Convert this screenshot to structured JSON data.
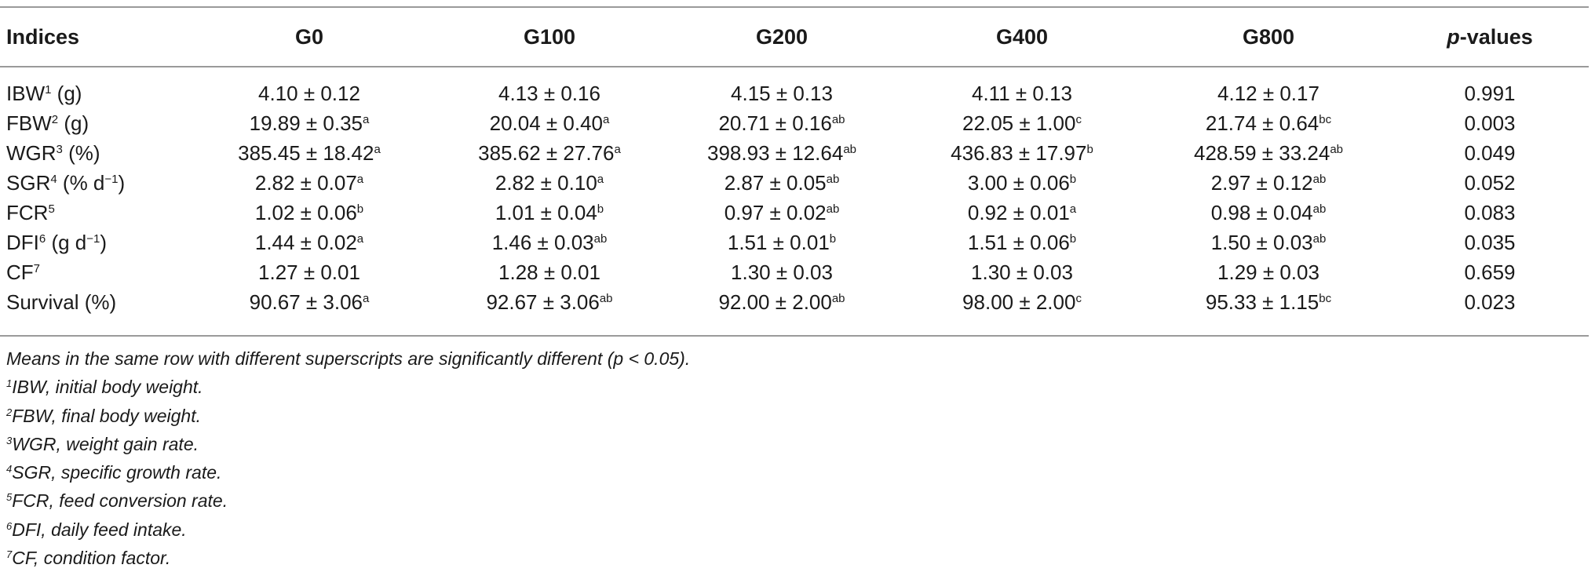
{
  "table": {
    "headers": {
      "indices": "Indices",
      "g0": "G0",
      "g100": "G100",
      "g200": "G200",
      "g400": "G400",
      "g800": "G800",
      "pvalues_p": "p",
      "pvalues_rest": "-values"
    },
    "rows": [
      {
        "label": "IBW",
        "label_sup": "1",
        "unit": " (g)",
        "cells": [
          {
            "v": "4.10 ± 0.12",
            "s": ""
          },
          {
            "v": "4.13 ± 0.16",
            "s": ""
          },
          {
            "v": "4.15 ± 0.13",
            "s": ""
          },
          {
            "v": "4.11 ± 0.13",
            "s": ""
          },
          {
            "v": "4.12 ± 0.17",
            "s": ""
          }
        ],
        "p": "0.991"
      },
      {
        "label": "FBW",
        "label_sup": "2",
        "unit": " (g)",
        "cells": [
          {
            "v": "19.89 ± 0.35",
            "s": "a"
          },
          {
            "v": "20.04 ± 0.40",
            "s": "a"
          },
          {
            "v": "20.71 ± 0.16",
            "s": "ab"
          },
          {
            "v": "22.05 ± 1.00",
            "s": "c"
          },
          {
            "v": "21.74 ± 0.64",
            "s": "bc"
          }
        ],
        "p": "0.003"
      },
      {
        "label": "WGR",
        "label_sup": "3",
        "unit": " (%)",
        "cells": [
          {
            "v": "385.45 ± 18.42",
            "s": "a"
          },
          {
            "v": "385.62 ± 27.76",
            "s": "a"
          },
          {
            "v": "398.93 ± 12.64",
            "s": "ab"
          },
          {
            "v": "436.83 ± 17.97",
            "s": "b"
          },
          {
            "v": "428.59 ± 33.24",
            "s": "ab"
          }
        ],
        "p": "0.049"
      },
      {
        "label": "SGR",
        "label_sup": "4",
        "unit": " (% d",
        "unit_sup": "−1",
        "unit_end": ")",
        "cells": [
          {
            "v": "2.82 ± 0.07",
            "s": "a"
          },
          {
            "v": "2.82 ± 0.10",
            "s": "a"
          },
          {
            "v": "2.87 ± 0.05",
            "s": "ab"
          },
          {
            "v": "3.00 ± 0.06",
            "s": "b"
          },
          {
            "v": "2.97 ± 0.12",
            "s": "ab"
          }
        ],
        "p": "0.052"
      },
      {
        "label": "FCR",
        "label_sup": "5",
        "unit": "",
        "cells": [
          {
            "v": "1.02 ± 0.06",
            "s": "b"
          },
          {
            "v": "1.01 ± 0.04",
            "s": "b"
          },
          {
            "v": "0.97 ± 0.02",
            "s": "ab"
          },
          {
            "v": "0.92 ± 0.01",
            "s": "a"
          },
          {
            "v": "0.98 ± 0.04",
            "s": "ab"
          }
        ],
        "p": "0.083"
      },
      {
        "label": "DFI",
        "label_sup": "6",
        "unit": " (g d",
        "unit_sup": "−1",
        "unit_end": ")",
        "cells": [
          {
            "v": "1.44 ± 0.02",
            "s": "a"
          },
          {
            "v": "1.46 ± 0.03",
            "s": "ab"
          },
          {
            "v": "1.51 ± 0.01",
            "s": "b"
          },
          {
            "v": "1.51 ± 0.06",
            "s": "b"
          },
          {
            "v": "1.50 ± 0.03",
            "s": "ab"
          }
        ],
        "p": "0.035"
      },
      {
        "label": "CF",
        "label_sup": "7",
        "unit": "",
        "cells": [
          {
            "v": "1.27 ± 0.01",
            "s": ""
          },
          {
            "v": "1.28 ± 0.01",
            "s": ""
          },
          {
            "v": "1.30 ± 0.03",
            "s": ""
          },
          {
            "v": "1.30 ± 0.03",
            "s": ""
          },
          {
            "v": "1.29 ± 0.03",
            "s": ""
          }
        ],
        "p": "0.659"
      },
      {
        "label": "Survival",
        "label_sup": "",
        "unit": " (%)",
        "cells": [
          {
            "v": "90.67 ± 3.06",
            "s": "a"
          },
          {
            "v": "92.67 ± 3.06",
            "s": "ab"
          },
          {
            "v": "92.00 ± 2.00",
            "s": "ab"
          },
          {
            "v": "98.00 ± 2.00",
            "s": "c"
          },
          {
            "v": "95.33 ± 1.15",
            "s": "bc"
          }
        ],
        "p": "0.023"
      }
    ]
  },
  "footnotes": {
    "main": "Means in the same row with different superscripts are significantly different (p < 0.05).",
    "notes": [
      {
        "sup": "1",
        "text": "IBW, initial body weight."
      },
      {
        "sup": "2",
        "text": "FBW, final body weight."
      },
      {
        "sup": "3",
        "text": "WGR, weight gain rate."
      },
      {
        "sup": "4",
        "text": "SGR, specific growth rate."
      },
      {
        "sup": "5",
        "text": "FCR, feed conversion rate."
      },
      {
        "sup": "6",
        "text": "DFI, daily feed intake."
      },
      {
        "sup": "7",
        "text": "CF, condition factor."
      }
    ]
  }
}
